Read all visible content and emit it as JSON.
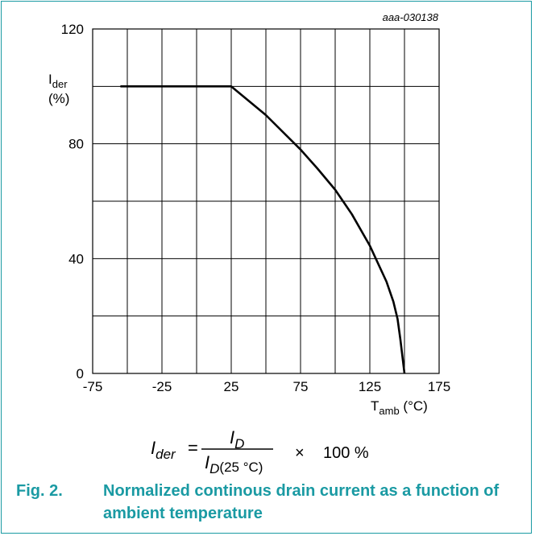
{
  "figure_ref": "aaa-030138",
  "caption": {
    "number": "Fig. 2.",
    "text": "Normalized continous drain current as a function of ambient temperature"
  },
  "formula": {
    "lhs_main": "I",
    "lhs_sub": "der",
    "equals": "=",
    "num_main": "I",
    "num_sub": "D",
    "den_main": "I",
    "den_sub": "D",
    "den_paren": "(25 °C)",
    "times": "×",
    "factor": "100 %"
  },
  "colors": {
    "accent": "#1a9aa3",
    "line": "#000000",
    "grid": "#000000"
  },
  "chart_data": {
    "type": "line",
    "xlabel_main": "T",
    "xlabel_sub": "amb",
    "xlabel_unit": "(°C)",
    "ylabel_main": "I",
    "ylabel_sub": "der",
    "ylabel_unit": "(%)",
    "xlim": [
      -75,
      175
    ],
    "ylim": [
      0,
      120
    ],
    "x_ticks": [
      -75,
      -25,
      25,
      75,
      125,
      175
    ],
    "x_gridlines": [
      -75,
      -50,
      -25,
      0,
      25,
      50,
      75,
      100,
      125,
      150,
      175
    ],
    "y_ticks": [
      0,
      40,
      80,
      120
    ],
    "y_gridlines": [
      0,
      20,
      40,
      60,
      80,
      100,
      120
    ],
    "grid": true,
    "series": [
      {
        "x": [
          -55,
          25,
          50,
          75,
          87,
          100,
          112,
          125,
          137,
          142,
          145,
          147,
          150
        ],
        "y": [
          100,
          100,
          90,
          78,
          71.5,
          64,
          55.5,
          44.5,
          32,
          25,
          19,
          12,
          0
        ]
      }
    ]
  }
}
